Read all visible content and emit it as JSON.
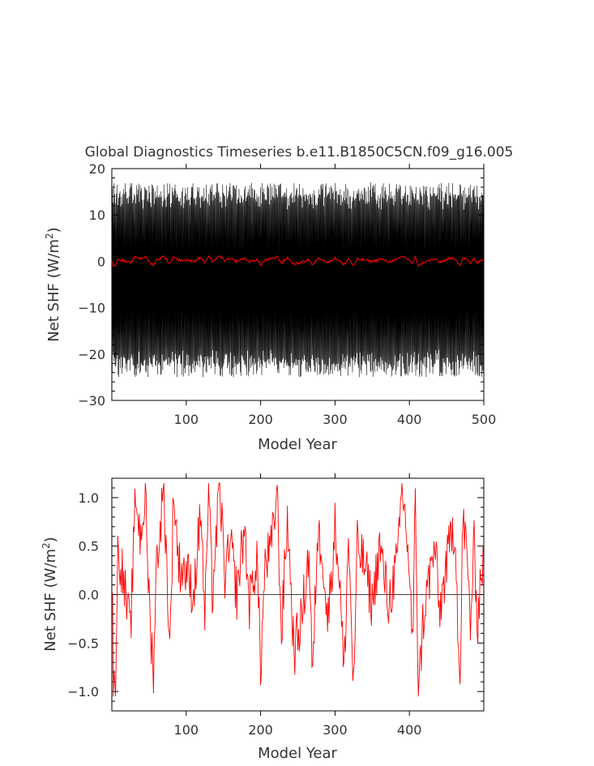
{
  "chart_data": [
    {
      "type": "line",
      "title": "Global Diagnostics Timeseries b.e11.B1850C5CN.f09_g16.005",
      "xlabel": "Model Year",
      "ylabel_main": "Net SHF (W/m",
      "ylabel_sup": "2",
      "ylabel_close": ")",
      "xlim": [
        0,
        500
      ],
      "ylim": [
        -30,
        20
      ],
      "xticks": [
        100,
        200,
        300,
        400,
        500
      ],
      "yticks": [
        -30,
        -20,
        -10,
        0,
        10,
        20
      ],
      "ytick_labels": [
        "−30",
        "−20",
        "−10",
        "0",
        "10",
        "20"
      ],
      "series": [
        {
          "color": "#000000",
          "kind": "monthly seasonal cycle",
          "seasonal_upper_typical": 14,
          "seasonal_lower_typical": -22,
          "max": 19,
          "min": -25
        },
        {
          "color": "#ff0000",
          "kind": "annual mean",
          "y_range": [
            -1,
            1.2
          ]
        }
      ]
    },
    {
      "type": "line",
      "title": "",
      "xlabel": "Model Year",
      "ylabel_main": "Net SHF (W/m",
      "ylabel_sup": "2",
      "ylabel_close": ")",
      "xlim": [
        0,
        500
      ],
      "ylim": [
        -1.2,
        1.2
      ],
      "xticks": [
        100,
        200,
        300,
        400
      ],
      "yticks": [
        -1.0,
        -0.5,
        0.0,
        0.5,
        1.0
      ],
      "ytick_labels": [
        "−1.0",
        "−0.5",
        "0.0",
        "0.5",
        "1.0"
      ],
      "zero_line": true,
      "series": [
        {
          "color": "#ff0000",
          "kind": "annual mean",
          "anchors": [
            [
              1,
              -0.2
            ],
            [
              2,
              -1.05
            ],
            [
              5,
              -0.8
            ],
            [
              8,
              0.4
            ],
            [
              12,
              0.35
            ],
            [
              18,
              0.0
            ],
            [
              25,
              -0.4
            ],
            [
              32,
              1.05
            ],
            [
              38,
              0.6
            ],
            [
              45,
              1.0
            ],
            [
              52,
              -0.4
            ],
            [
              56,
              -0.75
            ],
            [
              60,
              0.3
            ],
            [
              70,
              1.12
            ],
            [
              78,
              -0.6
            ],
            [
              83,
              1.1
            ],
            [
              90,
              0.3
            ],
            [
              100,
              0.25
            ],
            [
              110,
              0.0
            ],
            [
              120,
              0.9
            ],
            [
              125,
              -0.3
            ],
            [
              130,
              1.1
            ],
            [
              135,
              0.0
            ],
            [
              145,
              1.12
            ],
            [
              152,
              0.2
            ],
            [
              160,
              0.5
            ],
            [
              168,
              0.0
            ],
            [
              178,
              0.7
            ],
            [
              185,
              -0.1
            ],
            [
              195,
              0.4
            ],
            [
              200,
              -0.75
            ],
            [
              206,
              0.3
            ],
            [
              215,
              0.5
            ],
            [
              222,
              1.1
            ],
            [
              228,
              -0.4
            ],
            [
              236,
              0.8
            ],
            [
              245,
              -0.6
            ],
            [
              256,
              -0.2
            ],
            [
              265,
              0.45
            ],
            [
              270,
              -0.92
            ],
            [
              276,
              0.6
            ],
            [
              283,
              0.5
            ],
            [
              290,
              -0.3
            ],
            [
              300,
              0.7
            ],
            [
              306,
              0.2
            ],
            [
              312,
              -0.85
            ],
            [
              318,
              0.6
            ],
            [
              325,
              -0.98
            ],
            [
              330,
              0.5
            ],
            [
              340,
              0.3
            ],
            [
              350,
              -0.1
            ],
            [
              360,
              0.5
            ],
            [
              372,
              -0.1
            ],
            [
              385,
              0.4
            ],
            [
              390,
              1.12
            ],
            [
              398,
              0.5
            ],
            [
              405,
              -0.6
            ],
            [
              408,
              1.15
            ],
            [
              412,
              -1.05
            ],
            [
              418,
              -0.3
            ],
            [
              425,
              0.1
            ],
            [
              435,
              0.5
            ],
            [
              440,
              -0.2
            ],
            [
              450,
              0.3
            ],
            [
              458,
              0.7
            ],
            [
              462,
              0.6
            ],
            [
              468,
              -1.05
            ],
            [
              472,
              0.85
            ],
            [
              478,
              0.3
            ],
            [
              482,
              -0.3
            ],
            [
              487,
              0.5
            ],
            [
              492,
              -0.3
            ],
            [
              496,
              0.25
            ],
            [
              499,
              0.3
            ]
          ]
        }
      ]
    }
  ]
}
